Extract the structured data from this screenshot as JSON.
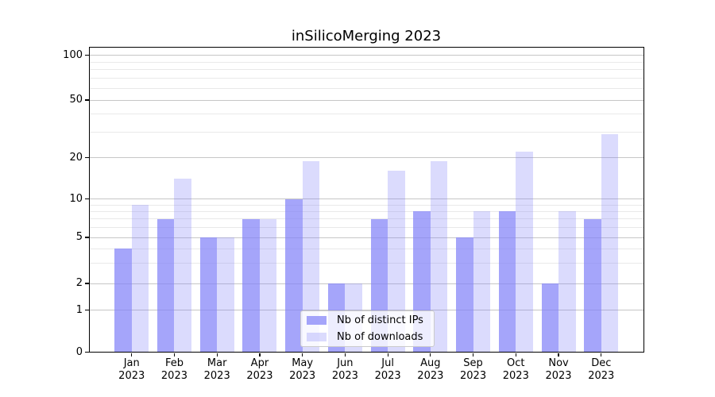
{
  "figure": {
    "background": "#ffffff",
    "spine_color": "#000000",
    "major_grid_color": "#c6c6c6",
    "minor_grid_color": "#e9e9e9",
    "tick_color": "#000000"
  },
  "chart_data": {
    "type": "bar",
    "title": "inSilicoMerging 2023",
    "categories": [
      "Jan",
      "Feb",
      "Mar",
      "Apr",
      "May",
      "Jun",
      "Jul",
      "Aug",
      "Sep",
      "Oct",
      "Nov",
      "Dec"
    ],
    "category_year": "2023",
    "series": [
      {
        "name": "Nb of distinct IPs",
        "color": "rgba(130,130,248,0.72)",
        "values": [
          4,
          7,
          5,
          7,
          10,
          2,
          7,
          8,
          5,
          8,
          2,
          7
        ]
      },
      {
        "name": "Nb of downloads",
        "color": "rgba(130,130,248,0.29)",
        "values": [
          9,
          14,
          5,
          7,
          19,
          2,
          16,
          19,
          8,
          22,
          8,
          29
        ]
      }
    ],
    "xlabel": "",
    "ylabel": "",
    "yscale": "log-like with zero baseline",
    "ylim": [
      0,
      112
    ],
    "y_ticks": [
      0,
      1,
      2,
      5,
      10,
      20,
      50,
      100
    ],
    "y_minor_gridlines": [
      3,
      4,
      6,
      7,
      8,
      9,
      30,
      40,
      60,
      70,
      80,
      90
    ],
    "grid": "horizontal, major and minor",
    "legend": {
      "position": "lower center",
      "entries": [
        "Nb of distinct IPs",
        "Nb of downloads"
      ]
    }
  }
}
